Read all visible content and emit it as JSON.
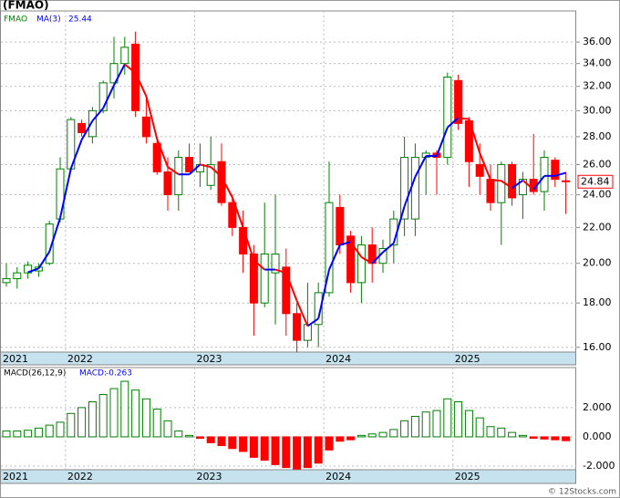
{
  "chart_data": {
    "type": "candlestick",
    "title": "(FMAO)",
    "symbol": "FMAO",
    "watermark": "© 12Stocks.com",
    "categories": [
      "2021",
      null,
      null,
      null,
      null,
      null,
      "2022",
      null,
      null,
      null,
      null,
      null,
      null,
      null,
      null,
      null,
      null,
      null,
      "2023",
      null,
      null,
      null,
      null,
      null,
      null,
      null,
      null,
      null,
      null,
      null,
      "2024",
      null,
      null,
      null,
      null,
      null,
      null,
      null,
      null,
      null,
      null,
      null,
      "2025",
      null,
      null,
      null,
      null,
      null,
      null,
      null,
      null,
      null,
      null
    ],
    "open": [
      19.0,
      19.2,
      19.5,
      19.6,
      20.0,
      22.5,
      25.7,
      29.0,
      28.0,
      30.0,
      32.3,
      34.0,
      35.8,
      29.5,
      27.5,
      25.5,
      24.0,
      26.5,
      25.5,
      24.6,
      26.2,
      23.5,
      22.0,
      20.5,
      18.0,
      19.5,
      19.8,
      17.5,
      16.3,
      17.0,
      18.5,
      23.2,
      21.5,
      19.0,
      21.0,
      20.0,
      21.0,
      22.5,
      22.5,
      26.5,
      26.8,
      26.5,
      32.5,
      29.2,
      26.0,
      25.0,
      23.5,
      26.0,
      24.0,
      25.0,
      24.2,
      26.3,
      24.9
    ],
    "high": [
      20.0,
      19.8,
      20.1,
      20.0,
      22.4,
      26.5,
      29.5,
      29.3,
      30.3,
      32.5,
      36.5,
      36.5,
      37.0,
      31.0,
      28.0,
      26.5,
      27.0,
      27.5,
      27.5,
      28.0,
      27.5,
      24.0,
      23.0,
      21.0,
      23.5,
      24.0,
      20.8,
      18.0,
      19.0,
      19.0,
      26.2,
      24.0,
      21.8,
      21.5,
      22.0,
      21.3,
      23.0,
      28.0,
      27.5,
      27.0,
      27.0,
      33.2,
      33.0,
      29.5,
      27.5,
      26.0,
      26.2,
      26.2,
      25.5,
      28.2,
      27.0,
      26.5,
      25.5
    ],
    "low": [
      18.8,
      18.7,
      19.2,
      19.3,
      19.9,
      22.3,
      25.5,
      28.0,
      27.5,
      29.8,
      31.0,
      33.0,
      29.5,
      27.5,
      25.3,
      23.0,
      23.0,
      25.5,
      24.5,
      24.3,
      23.3,
      21.5,
      19.5,
      16.5,
      17.8,
      17.0,
      16.5,
      15.8,
      16.0,
      16.0,
      18.3,
      20.5,
      18.5,
      18.0,
      19.0,
      19.5,
      20.0,
      21.5,
      21.5,
      24.0,
      24.0,
      26.0,
      28.5,
      24.5,
      24.0,
      23.0,
      21.0,
      23.3,
      22.5,
      24.0,
      23.0,
      24.5,
      22.8
    ],
    "close": [
      19.2,
      19.5,
      19.9,
      19.8,
      22.2,
      25.7,
      29.3,
      28.3,
      30.0,
      32.3,
      34.0,
      35.5,
      30.0,
      28.0,
      25.5,
      24.0,
      26.5,
      25.5,
      26.0,
      26.0,
      23.5,
      22.0,
      20.5,
      18.0,
      20.5,
      20.5,
      17.5,
      16.3,
      17.0,
      18.5,
      23.5,
      21.0,
      19.0,
      21.0,
      20.0,
      20.8,
      22.5,
      26.5,
      26.5,
      26.8,
      26.5,
      32.8,
      29.0,
      26.2,
      25.2,
      23.5,
      26.0,
      23.8,
      25.0,
      24.2,
      26.5,
      25.0,
      24.84
    ],
    "up_color": "#008000",
    "down_color": "#ff0000",
    "ma": {
      "name": "MA(3)",
      "color": "#0000ff",
      "down_color": "#ff0000",
      "values": [
        null,
        null,
        19.53,
        19.73,
        20.63,
        22.57,
        25.73,
        27.77,
        29.2,
        30.2,
        32.1,
        33.93,
        33.17,
        31.17,
        27.83,
        25.83,
        25.33,
        25.33,
        26.0,
        25.83,
        25.17,
        23.83,
        22.0,
        20.17,
        19.67,
        19.67,
        19.5,
        18.1,
        16.93,
        17.27,
        19.67,
        21.0,
        21.17,
        20.33,
        20.0,
        20.6,
        21.1,
        23.27,
        25.17,
        26.6,
        26.6,
        28.7,
        29.43,
        29.33,
        26.8,
        24.97,
        24.9,
        24.43,
        24.93,
        24.33,
        25.23,
        25.23,
        25.44
      ]
    },
    "ylim": [
      15.8,
      39.1
    ],
    "log_scale": true,
    "grid": true,
    "yticks": [
      {
        "value": 16,
        "label": "16.00"
      },
      {
        "value": 18,
        "label": "18.00"
      },
      {
        "value": 20,
        "label": "20.00"
      },
      {
        "value": 22,
        "label": "22.00"
      },
      {
        "value": 24,
        "label": "24.00"
      },
      {
        "value": 26,
        "label": "26.00"
      },
      {
        "value": 28,
        "label": "28.00"
      },
      {
        "value": 30,
        "label": "30.00"
      },
      {
        "value": 32,
        "label": "32.00"
      },
      {
        "value": 34,
        "label": "34.00"
      },
      {
        "value": 36,
        "label": "36.00"
      }
    ],
    "macd": {
      "name": "MACD(26,12,9)",
      "value_prefix": "MACD:",
      "up_color": "#008000",
      "down_color": "#ff0000",
      "values": [
        0.4,
        0.4,
        0.45,
        0.6,
        0.8,
        1.0,
        1.6,
        2.0,
        2.4,
        2.9,
        3.3,
        3.8,
        3.2,
        2.6,
        1.9,
        1.1,
        0.4,
        0.1,
        -0.1,
        -0.4,
        -0.6,
        -0.8,
        -1.0,
        -1.4,
        -1.6,
        -1.9,
        -2.1,
        -2.2,
        -2.1,
        -1.8,
        -0.9,
        -0.3,
        -0.2,
        0.1,
        0.2,
        0.3,
        0.5,
        1.1,
        1.4,
        1.7,
        1.8,
        2.6,
        2.4,
        1.8,
        1.3,
        0.7,
        0.6,
        0.3,
        0.1,
        -0.1,
        -0.15,
        -0.2,
        -0.263
      ],
      "ylim": [
        -2.25,
        4.74
      ],
      "yticks": [
        {
          "value": -2,
          "label": "-2.000"
        },
        {
          "value": 0,
          "label": "0.000"
        },
        {
          "value": 2,
          "label": "2.000"
        }
      ]
    }
  }
}
